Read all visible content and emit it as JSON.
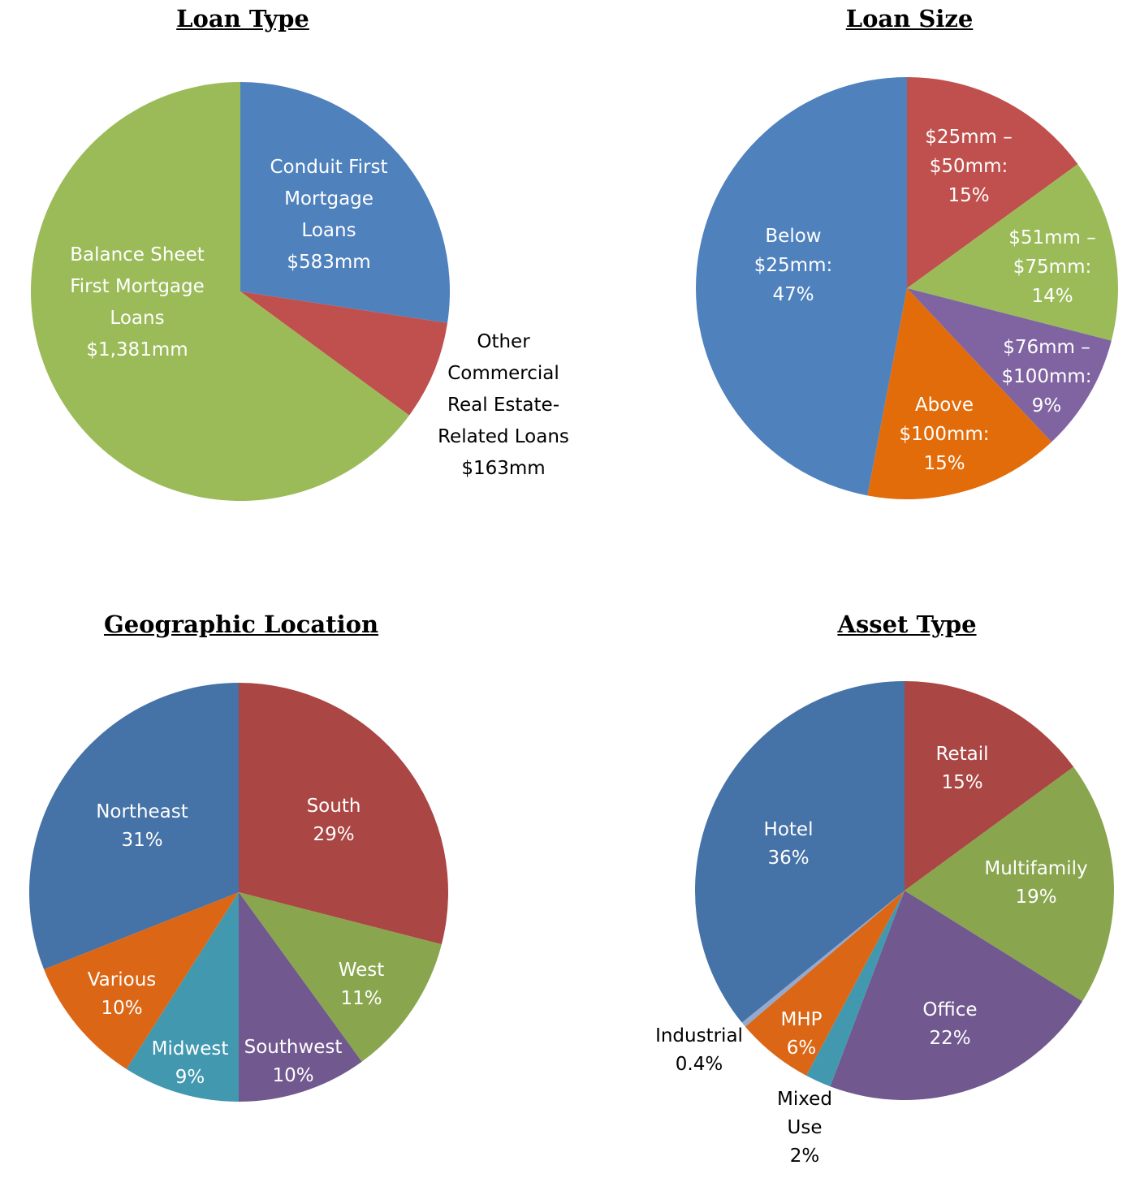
{
  "chart_data": [
    {
      "type": "pie",
      "title": "Loan Type",
      "unit": "$mm",
      "slices": [
        {
          "label": "Conduit First Mortgage Loans",
          "value": 583,
          "color": "#4f81bd",
          "label_lines": [
            "Conduit First",
            "Mortgage",
            "Loans",
            "$583mm"
          ],
          "label_color": "#ffffff"
        },
        {
          "label": "Other Commercial Real Estate-Related Loans",
          "value": 163,
          "color": "#c0504d",
          "label_lines": [
            "Other",
            "Commercial",
            "Real Estate-",
            "Related Loans",
            "$163mm"
          ],
          "label_color": "#000000"
        },
        {
          "label": "Balance Sheet First Mortgage Loans",
          "value": 1381,
          "color": "#9bbb59",
          "label_lines": [
            "Balance Sheet",
            "First Mortgage",
            "Loans",
            "$1,381mm"
          ],
          "label_color": "#ffffff"
        }
      ]
    },
    {
      "type": "pie",
      "title": "Loan Size",
      "unit": "%",
      "slices": [
        {
          "label": "$25mm – $50mm",
          "value": 15,
          "color": "#c0504d",
          "label_lines": [
            "$25mm –",
            "$50mm:",
            "15%"
          ],
          "label_color": "#ffffff"
        },
        {
          "label": "$51mm – $75mm",
          "value": 14,
          "color": "#9bbb59",
          "label_lines": [
            "$51mm –",
            "$75mm:",
            "14%"
          ],
          "label_color": "#ffffff"
        },
        {
          "label": "$76mm – $100mm",
          "value": 9,
          "color": "#8064a2",
          "label_lines": [
            "$76mm –",
            "$100mm:",
            "9%"
          ],
          "label_color": "#ffffff"
        },
        {
          "label": "Above $100mm",
          "value": 15,
          "color": "#e36c0a",
          "label_lines": [
            "Above",
            "$100mm:",
            "15%"
          ],
          "label_color": "#ffffff"
        },
        {
          "label": "Below $25mm",
          "value": 47,
          "color": "#4f81bd",
          "label_lines": [
            "Below",
            "$25mm:",
            "47%"
          ],
          "label_color": "#ffffff"
        }
      ]
    },
    {
      "type": "pie",
      "title": "Geographic Location",
      "unit": "%",
      "slices": [
        {
          "label": "South",
          "value": 29,
          "color": "#aa4643",
          "label_lines": [
            "South",
            "29%"
          ],
          "label_color": "#ffffff"
        },
        {
          "label": "West",
          "value": 11,
          "color": "#89a54e",
          "label_lines": [
            "West",
            "11%"
          ],
          "label_color": "#ffffff"
        },
        {
          "label": "Southwest",
          "value": 10,
          "color": "#71588f",
          "label_lines": [
            "Southwest",
            "10%"
          ],
          "label_color": "#ffffff"
        },
        {
          "label": "Midwest",
          "value": 9,
          "color": "#4198af",
          "label_lines": [
            "Midwest",
            "9%"
          ],
          "label_color": "#ffffff"
        },
        {
          "label": "Various",
          "value": 10,
          "color": "#db6716",
          "label_lines": [
            "Various",
            "10%"
          ],
          "label_color": "#ffffff"
        },
        {
          "label": "Northeast",
          "value": 31,
          "color": "#4572a7",
          "label_lines": [
            "Northeast",
            "31%"
          ],
          "label_color": "#ffffff"
        }
      ]
    },
    {
      "type": "pie",
      "title": "Asset Type",
      "unit": "%",
      "slices": [
        {
          "label": "Retail",
          "value": 15,
          "color": "#aa4643",
          "label_lines": [
            "Retail",
            "15%"
          ],
          "label_color": "#ffffff"
        },
        {
          "label": "Multifamily",
          "value": 19,
          "color": "#89a54e",
          "label_lines": [
            "Multifamily",
            "19%"
          ],
          "label_color": "#ffffff"
        },
        {
          "label": "Office",
          "value": 22,
          "color": "#71588f",
          "label_lines": [
            "Office",
            "22%"
          ],
          "label_color": "#ffffff"
        },
        {
          "label": "Mixed Use",
          "value": 2,
          "color": "#4198af",
          "label_lines": [
            "Mixed",
            "Use",
            "2%"
          ],
          "label_color": "#000000"
        },
        {
          "label": "MHP",
          "value": 6,
          "color": "#db6716",
          "label_lines": [
            "MHP",
            "6%"
          ],
          "label_color": "#ffffff"
        },
        {
          "label": "Industrial",
          "value": 0.4,
          "color": "#93a9cf",
          "label_lines": [
            "Industrial",
            "0.4%"
          ],
          "label_color": "#000000"
        },
        {
          "label": "Hotel",
          "value": 36,
          "color": "#4572a7",
          "label_lines": [
            "Hotel",
            "36%"
          ],
          "label_color": "#ffffff"
        }
      ]
    }
  ]
}
